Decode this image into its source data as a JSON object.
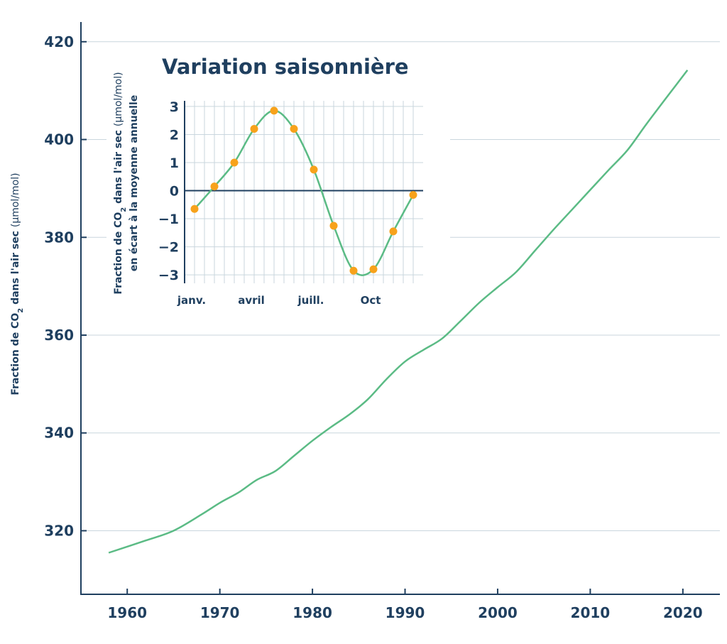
{
  "colors": {
    "line": "#5bbb85",
    "marker": "#f7a21b",
    "axis": "#1f3f5f",
    "grid": "#c9d6de",
    "text": "#1f3f5f"
  },
  "chart_data": [
    {
      "type": "line",
      "title": "",
      "xlabel": "",
      "ylabel_parts": [
        "Fraction de CO",
        "2",
        " dans l'air sec ",
        "(µmol/mol)"
      ],
      "xlim": [
        1955,
        2024
      ],
      "ylim": [
        307,
        422
      ],
      "x_ticks": [
        1960,
        1970,
        1980,
        1990,
        2000,
        2010,
        2020
      ],
      "x_tick_labels": [
        "1960",
        "1970",
        "1980",
        "1990",
        "2000",
        "2010",
        "2020"
      ],
      "y_ticks": [
        320,
        340,
        360,
        380,
        400,
        420
      ],
      "y_tick_labels": [
        "320",
        "340",
        "360",
        "380",
        "400",
        "420"
      ],
      "grid": "horizontal",
      "series": [
        {
          "x": [
            1958,
            1962,
            1965,
            1968,
            1970,
            1972,
            1974,
            1976,
            1978,
            1980,
            1982,
            1984,
            1986,
            1988,
            1990,
            1992,
            1994,
            1996,
            1998,
            2000,
            2002,
            2004,
            2006,
            2008,
            2010,
            2012,
            2014,
            2016,
            2018,
            2020.5
          ],
          "values": [
            315.5,
            318.0,
            320.0,
            323.3,
            325.7,
            327.8,
            330.4,
            332.2,
            335.3,
            338.4,
            341.2,
            343.8,
            346.9,
            351.0,
            354.6,
            357.0,
            359.3,
            362.9,
            366.6,
            369.8,
            372.9,
            377.2,
            381.5,
            385.6,
            389.7,
            393.8,
            397.8,
            403.0,
            408.0,
            414.2
          ]
        }
      ]
    },
    {
      "type": "line",
      "title": "Variation saisonnière",
      "ylabel_lines": [
        [
          "Fraction de CO",
          "2",
          " dans l'air sec ",
          "(µmol/mol)"
        ],
        [
          "en écart à la moyenne annuelle",
          "",
          "",
          ""
        ]
      ],
      "xlim": [
        0,
        11.5
      ],
      "ylim": [
        -3.3,
        3.2
      ],
      "x_tick_labels": [
        {
          "month": 0,
          "label": "janv."
        },
        {
          "month": 3,
          "label": "avril"
        },
        {
          "month": 6,
          "label": "juill."
        },
        {
          "month": 9,
          "label": "Oct"
        }
      ],
      "y_ticks": [
        -3,
        -2,
        -1,
        0,
        1,
        2,
        3
      ],
      "y_tick_labels": [
        "−3",
        "−2",
        "−1",
        "0",
        "1",
        "2",
        "3"
      ],
      "grid": "both",
      "series": [
        {
          "x": [
            0,
            1,
            2,
            3,
            4,
            5,
            6,
            7,
            8,
            9,
            10,
            11
          ],
          "values": [
            -0.65,
            0.15,
            1.0,
            2.2,
            2.85,
            2.2,
            0.75,
            -1.25,
            -2.85,
            -2.8,
            -1.45,
            -0.15
          ]
        }
      ]
    }
  ]
}
